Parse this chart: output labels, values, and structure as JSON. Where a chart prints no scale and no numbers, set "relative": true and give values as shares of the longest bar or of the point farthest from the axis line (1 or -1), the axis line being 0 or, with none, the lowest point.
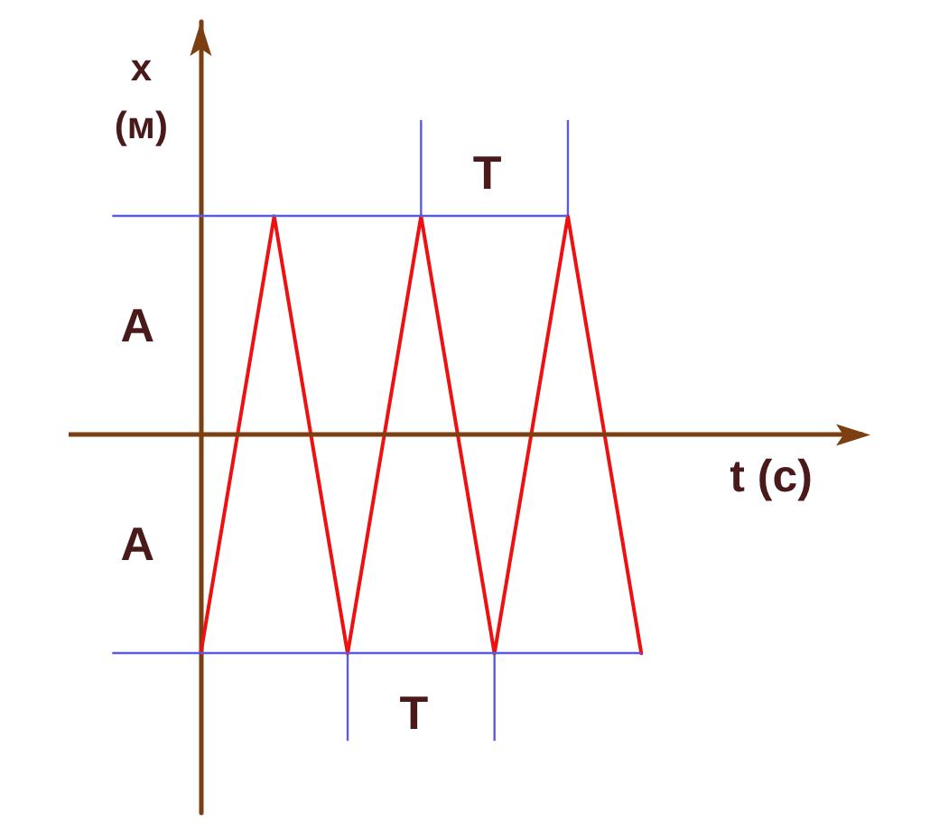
{
  "chart_data": {
    "type": "line",
    "xlabel": "t (с)",
    "ylabel": "x (м)",
    "categories": [
      null,
      null,
      null,
      null,
      null,
      null,
      null
    ],
    "values": [
      -1,
      1,
      -1,
      1,
      -1,
      1,
      -1
    ],
    "color": "#ee1111",
    "relative": true,
    "marker": "none",
    "line_style": "solid",
    "ref_lines": [
      {
        "axis": "y",
        "value": 1,
        "color": "#5b5bdf"
      },
      {
        "axis": "y",
        "value": -1,
        "color": "#5b5bdf"
      },
      {
        "axis": "y",
        "value": 0,
        "color": "#7b3f12"
      }
    ],
    "annotations": [
      "A",
      "A",
      "T",
      "T"
    ]
  }
}
